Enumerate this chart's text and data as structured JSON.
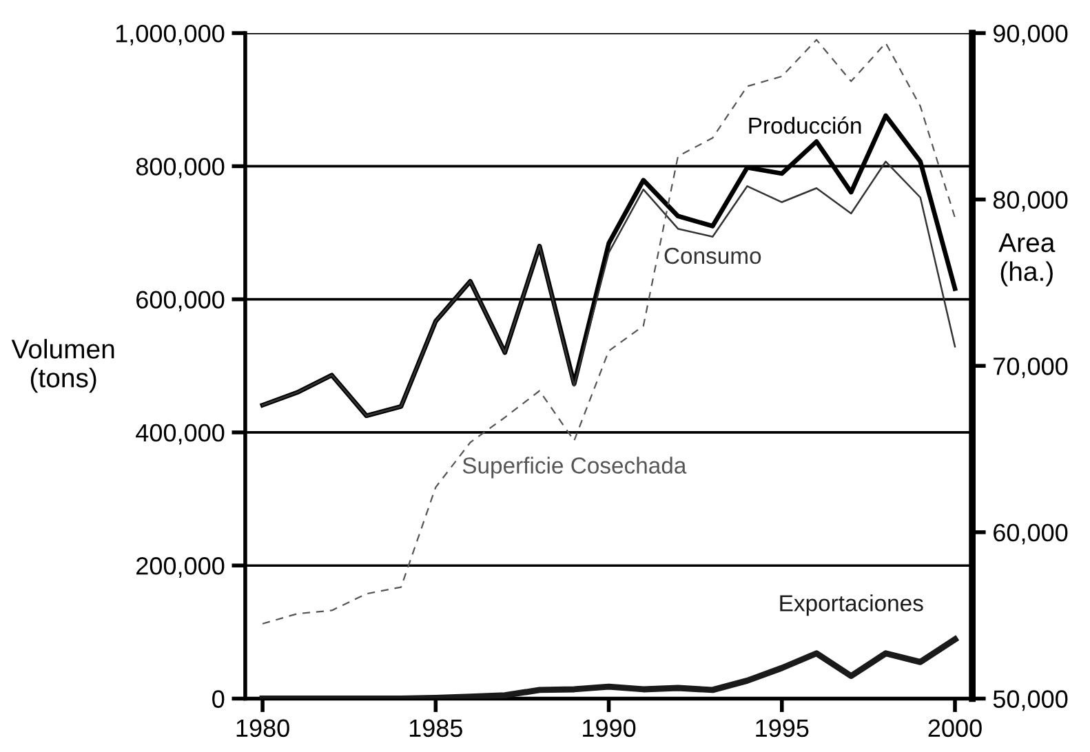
{
  "chart_data": {
    "type": "line",
    "ylabel": "Volumen\n(tons)",
    "y2label": "Area\n(ha.)",
    "x": [
      1980,
      1981,
      1982,
      1983,
      1984,
      1985,
      1986,
      1987,
      1988,
      1989,
      1990,
      1991,
      1992,
      1993,
      1994,
      1995,
      1996,
      1997,
      1998,
      1999,
      2000
    ],
    "xlim": [
      1979.5,
      2000.5
    ],
    "xticks": [
      1980,
      1985,
      1990,
      1995,
      2000
    ],
    "ylim": [
      0,
      1000000
    ],
    "yticks": [
      {
        "value": 0,
        "label": "0"
      },
      {
        "value": 200000,
        "label": "200,000"
      },
      {
        "value": 400000,
        "label": "400,000"
      },
      {
        "value": 600000,
        "label": "600,000"
      },
      {
        "value": 800000,
        "label": "800,000"
      },
      {
        "value": 1000000,
        "label": "1,000,000"
      }
    ],
    "y2lim": [
      50000,
      90000
    ],
    "y2ticks": [
      {
        "value": 50000,
        "label": "50,000"
      },
      {
        "value": 60000,
        "label": "60,000"
      },
      {
        "value": 70000,
        "label": "70,000"
      },
      {
        "value": 80000,
        "label": "80,000"
      },
      {
        "value": 90000,
        "label": "90,000"
      }
    ],
    "grid": "y",
    "legend": false,
    "marker": "none",
    "series": [
      {
        "name": "Producción",
        "color": "#000000",
        "line_style": "solid",
        "values": [
          441000,
          460000,
          486000,
          425000,
          439000,
          567000,
          627000,
          520000,
          680000,
          473000,
          684000,
          779000,
          725000,
          710000,
          798000,
          789000,
          837000,
          761000,
          876000,
          807000,
          616000
        ]
      },
      {
        "name": "Consumo",
        "color": "#333333",
        "line_style": "solid",
        "values": [
          441000,
          460000,
          486000,
          425000,
          439000,
          567000,
          627000,
          520000,
          680000,
          470000,
          670000,
          765000,
          706000,
          694000,
          770000,
          746000,
          767000,
          729000,
          807000,
          753000,
          529000
        ]
      },
      {
        "name": "Superficie Cosechada",
        "color": "#555555",
        "line_style": "dashed",
        "axis": "y2",
        "values": [
          54500,
          55100,
          55300,
          56300,
          56700,
          62700,
          65400,
          66900,
          68500,
          65500,
          70900,
          72400,
          82600,
          83700,
          86800,
          87400,
          89600,
          87100,
          89400,
          85600,
          78900
        ]
      },
      {
        "name": "Exportaciones",
        "color": "#1a1a1a",
        "line_style": "solid",
        "values": [
          0,
          0,
          0,
          0,
          0,
          1000,
          3000,
          5000,
          13000,
          14000,
          18000,
          14000,
          16000,
          13000,
          27000,
          46000,
          68000,
          34000,
          68000,
          55000,
          89000
        ]
      }
    ]
  }
}
